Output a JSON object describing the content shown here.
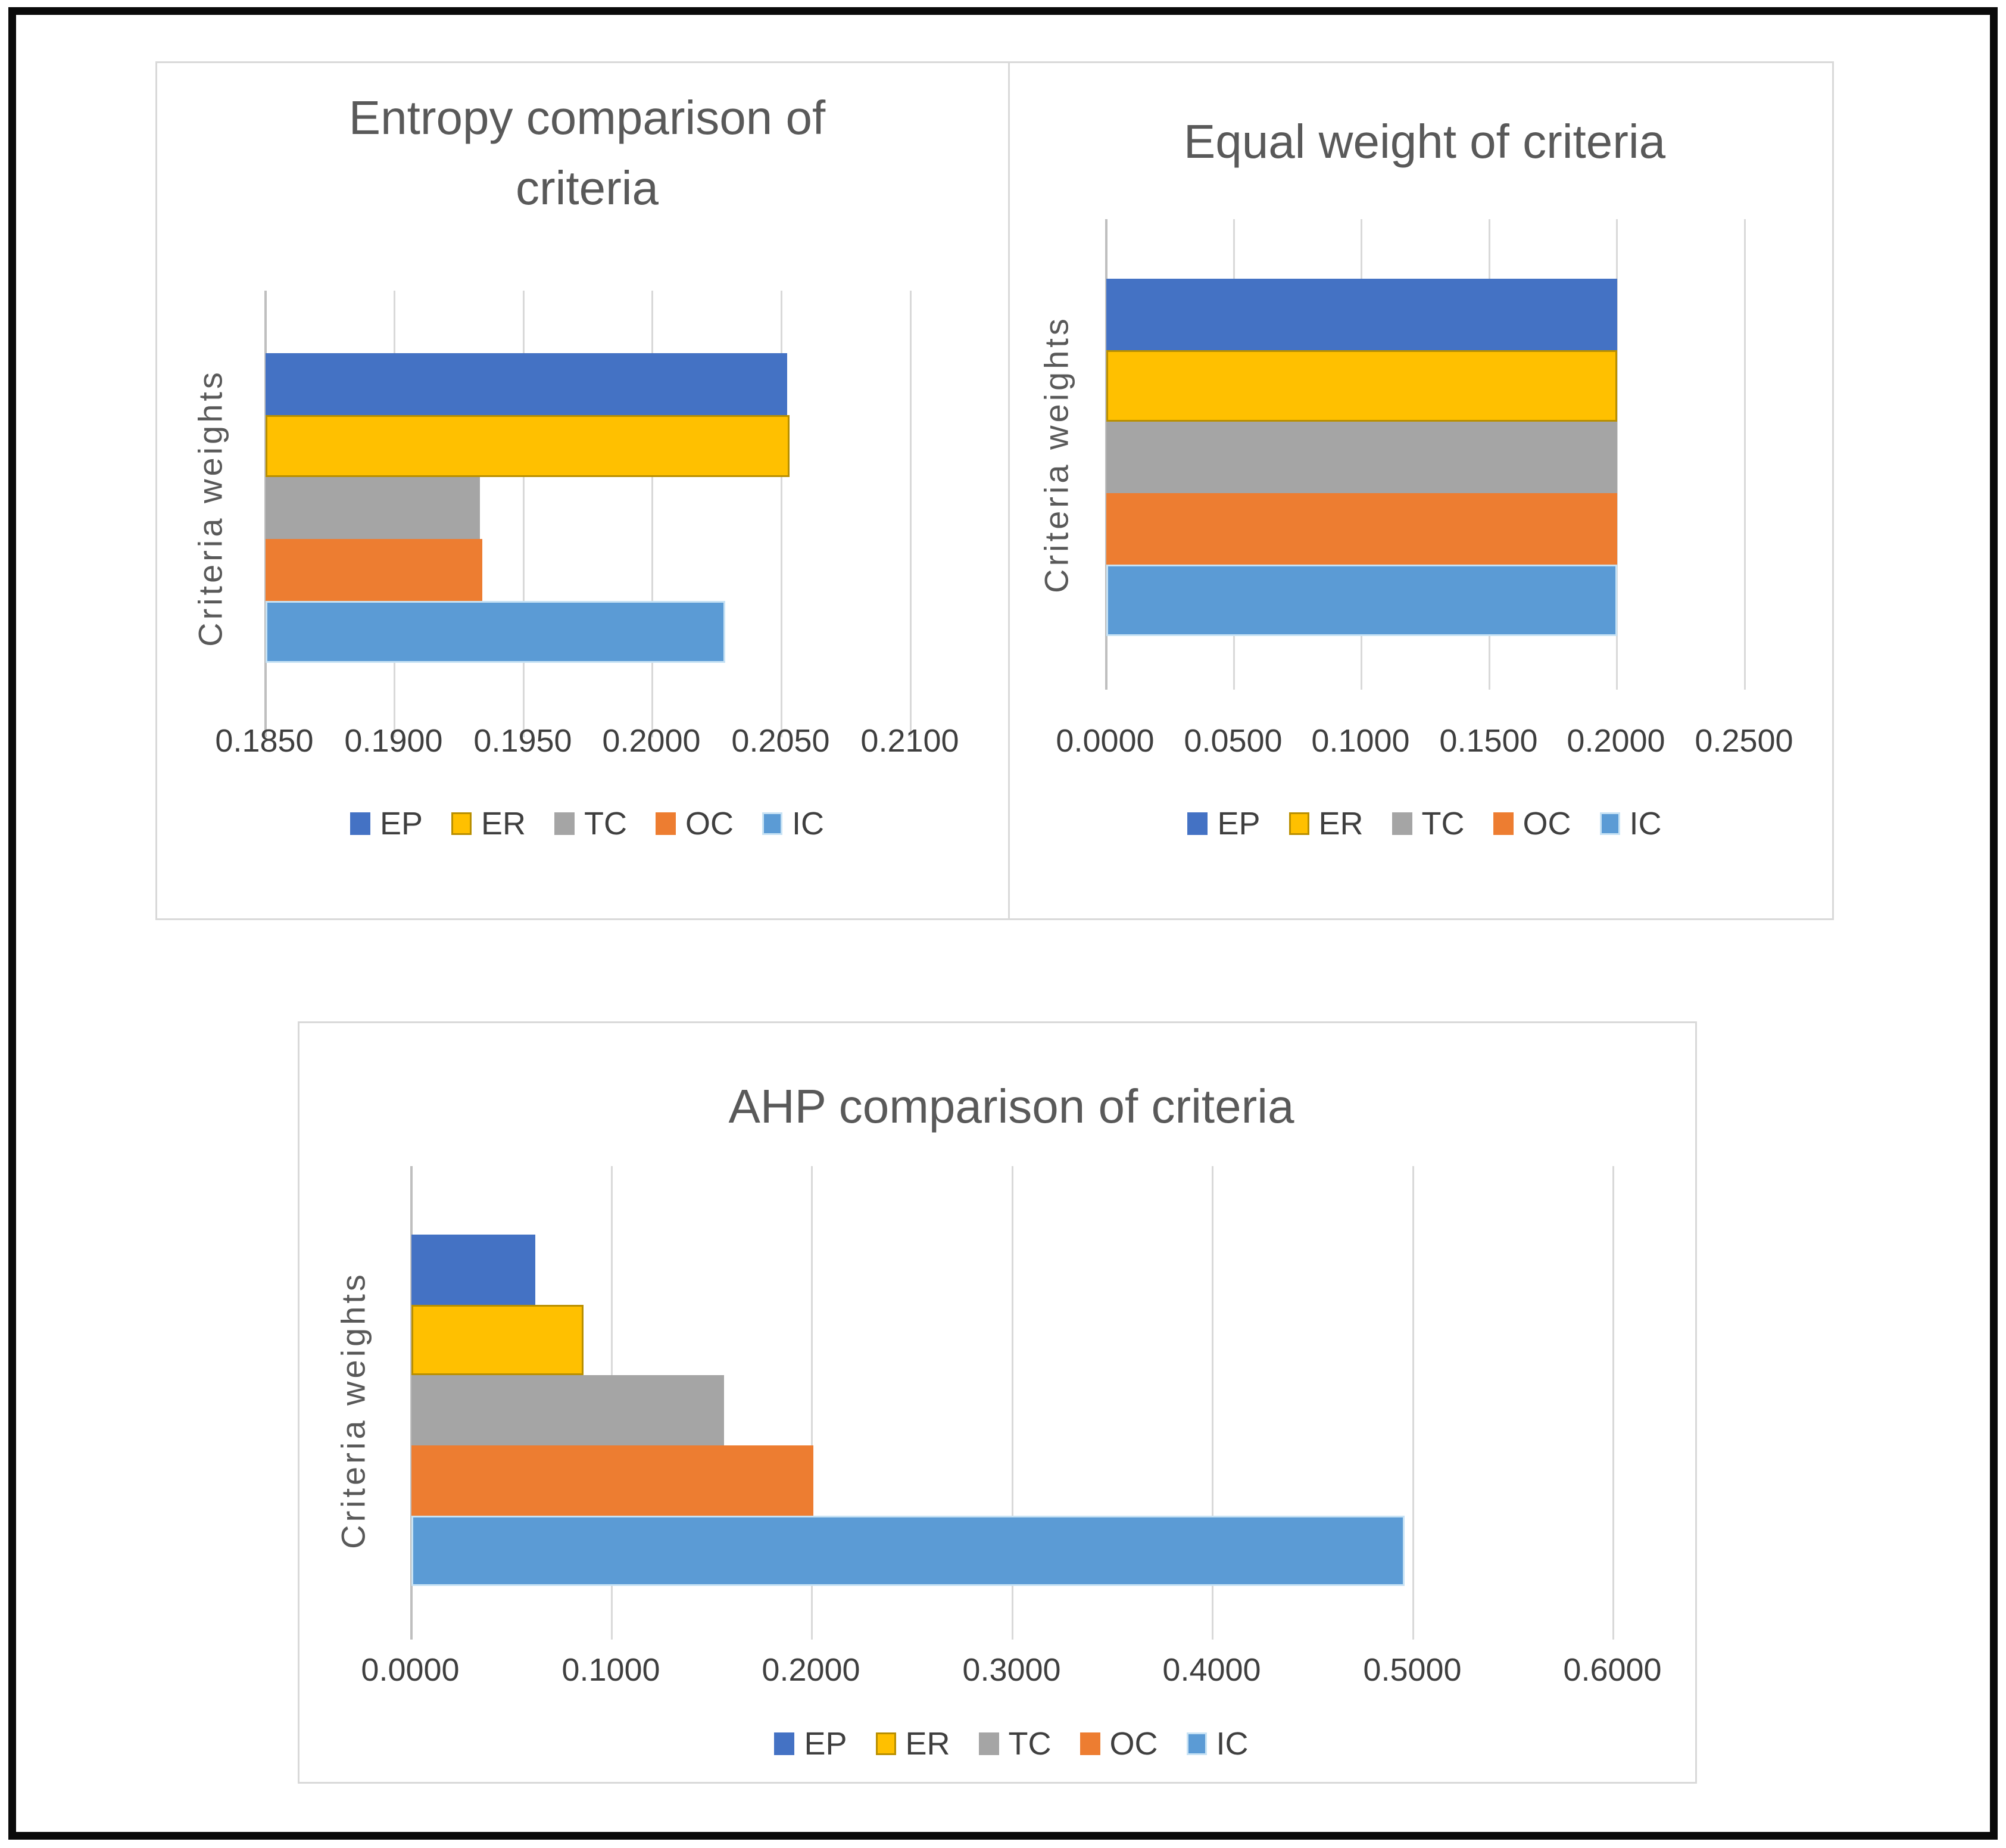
{
  "figure": {
    "description_title": "",
    "y_axis_title": "Criteria weights"
  },
  "series_colors": {
    "EP": "#4472C4",
    "ER": "#FFC000",
    "TC": "#A5A5A5",
    "OC": "#ED7D31",
    "IC": "#5B9BD5"
  },
  "palette": {
    "title_color": "#595959",
    "tick_color": "#3f3f3f",
    "gridline_color": "#D9D9D9",
    "axis_line_color": "#BFBFBF",
    "panel_border_color": "#D9D9D9",
    "frame_color": "#0A0A0A",
    "background": "#FFFFFF"
  },
  "chart_data": [
    {
      "id": "entropy",
      "type": "bar",
      "orientation": "horizontal",
      "title": "Entropy comparison of criteria",
      "title_lines": [
        "Entropy comparison of",
        "criteria"
      ],
      "xlabel": "",
      "ylabel": "Criteria weights",
      "categories": [
        "EP",
        "ER",
        "TC",
        "OC",
        "IC"
      ],
      "values": [
        0.2052,
        0.2053,
        0.1933,
        0.1934,
        0.2028
      ],
      "xlim": [
        0.185,
        0.21
      ],
      "xticks": [
        0.185,
        0.19,
        0.195,
        0.2,
        0.205,
        0.21
      ],
      "xtick_labels": [
        "0.1850",
        "0.1900",
        "0.1950",
        "0.2000",
        "0.2050",
        "0.2100"
      ],
      "legend": [
        "EP",
        "ER",
        "TC",
        "OC",
        "IC"
      ],
      "legend_position": "bottom",
      "grid": true
    },
    {
      "id": "equal",
      "type": "bar",
      "orientation": "horizontal",
      "title": "Equal weight of criteria",
      "title_lines": [
        "Equal weight of criteria"
      ],
      "xlabel": "",
      "ylabel": "Criteria weights",
      "categories": [
        "EP",
        "ER",
        "TC",
        "OC",
        "IC"
      ],
      "values": [
        0.2,
        0.2,
        0.2,
        0.2,
        0.2
      ],
      "xlim": [
        0,
        0.25
      ],
      "xticks": [
        0,
        0.05,
        0.1,
        0.15,
        0.2,
        0.25
      ],
      "xtick_labels": [
        "0.0000",
        "0.0500",
        "0.1000",
        "0.1500",
        "0.2000",
        "0.2500"
      ],
      "legend": [
        "EP",
        "ER",
        "TC",
        "OC",
        "IC"
      ],
      "legend_position": "bottom",
      "grid": true
    },
    {
      "id": "ahp",
      "type": "bar",
      "orientation": "horizontal",
      "title": "AHP comparison of criteria",
      "title_lines": [
        "AHP comparison of criteria"
      ],
      "xlabel": "",
      "ylabel": "Criteria weights",
      "categories": [
        "EP",
        "ER",
        "TC",
        "OC",
        "IC"
      ],
      "values": [
        0.0618,
        0.086,
        0.156,
        0.2005,
        0.4957
      ],
      "xlim": [
        0,
        0.6
      ],
      "xticks": [
        0,
        0.1,
        0.2,
        0.3,
        0.4,
        0.5,
        0.6
      ],
      "xtick_labels": [
        "0.0000",
        "0.1000",
        "0.2000",
        "0.3000",
        "0.4000",
        "0.5000",
        "0.6000"
      ],
      "legend": [
        "EP",
        "ER",
        "TC",
        "OC",
        "IC"
      ],
      "legend_position": "bottom",
      "grid": true
    }
  ]
}
